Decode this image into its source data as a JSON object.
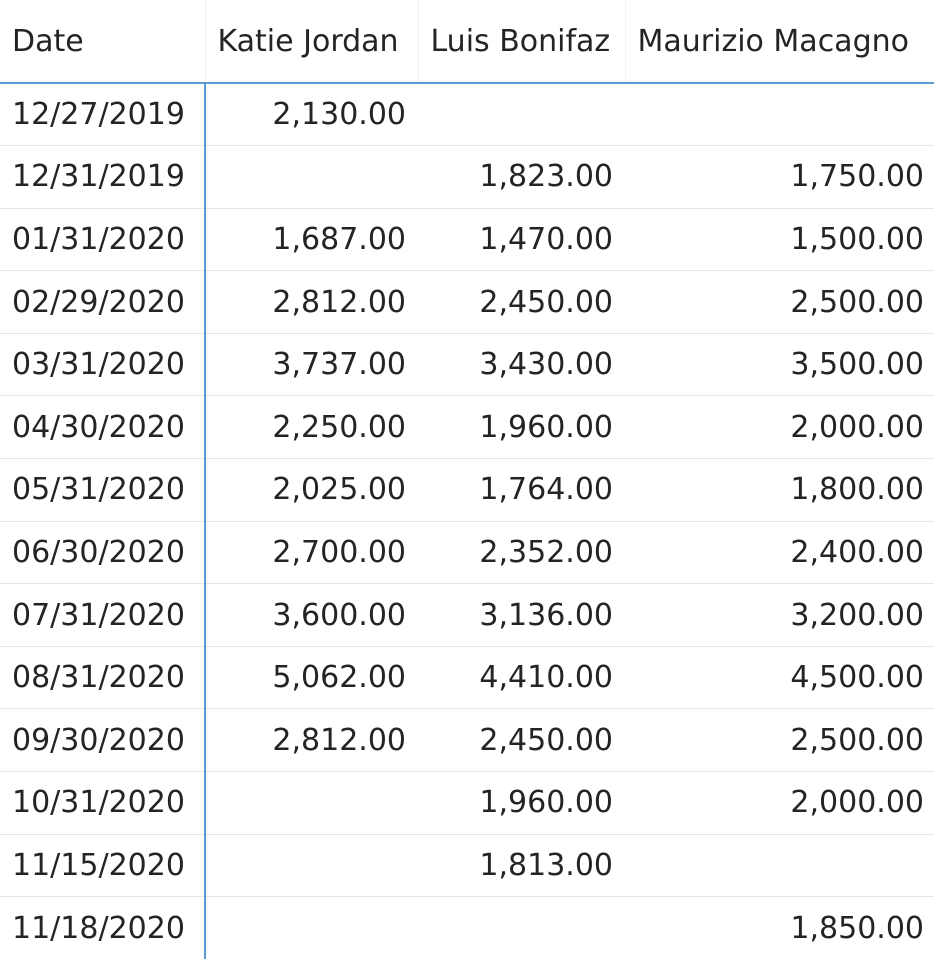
{
  "table": {
    "columns": [
      "Date",
      "Katie Jordan",
      "Luis Bonifaz",
      "Maurizio Macagno"
    ],
    "rows": [
      [
        "12/27/2019",
        "2,130.00",
        "",
        ""
      ],
      [
        "12/31/2019",
        "",
        "1,823.00",
        "1,750.00"
      ],
      [
        "01/31/2020",
        "1,687.00",
        "1,470.00",
        "1,500.00"
      ],
      [
        "02/29/2020",
        "2,812.00",
        "2,450.00",
        "2,500.00"
      ],
      [
        "03/31/2020",
        "3,737.00",
        "3,430.00",
        "3,500.00"
      ],
      [
        "04/30/2020",
        "2,250.00",
        "1,960.00",
        "2,000.00"
      ],
      [
        "05/31/2020",
        "2,025.00",
        "1,764.00",
        "1,800.00"
      ],
      [
        "06/30/2020",
        "2,700.00",
        "2,352.00",
        "2,400.00"
      ],
      [
        "07/31/2020",
        "3,600.00",
        "3,136.00",
        "3,200.00"
      ],
      [
        "08/31/2020",
        "5,062.00",
        "4,410.00",
        "4,500.00"
      ],
      [
        "09/30/2020",
        "2,812.00",
        "2,450.00",
        "2,500.00"
      ],
      [
        "10/31/2020",
        "",
        "1,960.00",
        "2,000.00"
      ],
      [
        "11/15/2020",
        "",
        "1,813.00",
        ""
      ],
      [
        "11/18/2020",
        "",
        "",
        "1,850.00"
      ]
    ]
  },
  "colors": {
    "accent": "#5b9bd5",
    "text": "#252423",
    "grid": "#e6e6e6"
  }
}
